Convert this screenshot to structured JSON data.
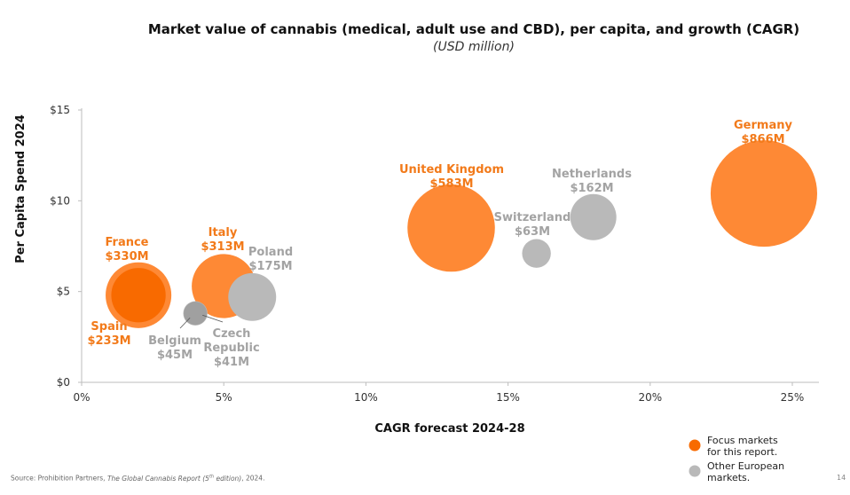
{
  "chart_data": {
    "type": "scatter",
    "title": "Market value of cannabis (medical, adult use and CBD), per capita, and growth (CAGR)",
    "subtitle": "(USD million)",
    "xlabel": "CAGR forecast 2024-28",
    "ylabel": "Per Capita Spend 2024",
    "xlim": [
      0,
      25
    ],
    "ylim": [
      0,
      15
    ],
    "x_ticks": [
      0,
      5,
      10,
      15,
      20,
      25
    ],
    "x_tick_labels": [
      "0%",
      "5%",
      "10%",
      "15%",
      "20%",
      "25%"
    ],
    "y_ticks": [
      0,
      5,
      10,
      15
    ],
    "y_tick_labels": [
      "$0",
      "$5",
      "$10",
      "$15"
    ],
    "grid": false,
    "size_field": "market value (USD million)",
    "colors": {
      "focus": "#fe8935",
      "focus_dark": "#f86a00",
      "other": "#b9b9b9",
      "focus_text": "#f27a1a",
      "other_text": "#a3a3a3"
    },
    "points": [
      {
        "name": "Germany",
        "value_label": "$866M",
        "x": 24,
        "y": 10.4,
        "size": 866,
        "group": "focus"
      },
      {
        "name": "United Kingdom",
        "value_label": "$583M",
        "x": 13,
        "y": 8.5,
        "size": 583,
        "group": "focus"
      },
      {
        "name": "France",
        "value_label": "$330M",
        "x": 2,
        "y": 4.8,
        "size": 330,
        "group": "focus"
      },
      {
        "name": "Italy",
        "value_label": "$313M",
        "x": 5,
        "y": 5.3,
        "size": 313,
        "group": "focus"
      },
      {
        "name": "Spain",
        "value_label": "$233M",
        "x": 2,
        "y": 4.8,
        "size": 233,
        "group": "focus"
      },
      {
        "name": "Poland",
        "value_label": "$175M",
        "x": 6,
        "y": 4.7,
        "size": 175,
        "group": "other"
      },
      {
        "name": "Netherlands",
        "value_label": "$162M",
        "x": 18,
        "y": 9.1,
        "size": 162,
        "group": "other"
      },
      {
        "name": "Switzerland",
        "value_label": "$63M",
        "x": 16,
        "y": 7.1,
        "size": 63,
        "group": "other"
      },
      {
        "name": "Belgium",
        "value_label": "$45M",
        "x": 4,
        "y": 3.8,
        "size": 45,
        "group": "other"
      },
      {
        "name": "Czech Republic",
        "value_label": "$41M",
        "x": 4,
        "y": 3.8,
        "size": 41,
        "group": "other"
      }
    ],
    "legend": {
      "placement": "bottom-right",
      "items": [
        {
          "label_lines": [
            "Focus markets",
            "for this report."
          ],
          "group": "focus"
        },
        {
          "label_lines": [
            "Other European",
            "markets."
          ],
          "group": "other"
        }
      ]
    }
  },
  "footer": {
    "source_prefix": "Source: Prohibition Partners, ",
    "source_title": "The Global Cannabis Report (5",
    "source_sup": "th",
    "source_suffix_title": " edition)",
    "source_suffix": ", 2024.",
    "page_number": "14"
  }
}
